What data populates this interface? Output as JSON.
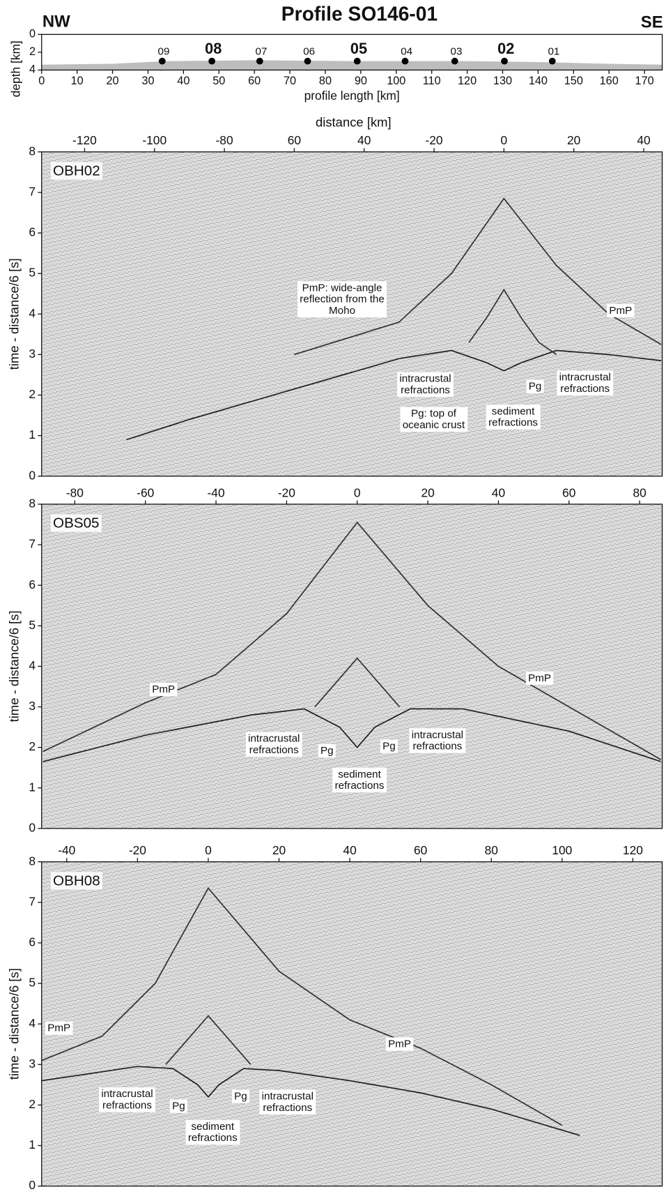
{
  "chart_data": [
    {
      "type": "area",
      "title": "Profile SO146-01",
      "left_label": "NW",
      "right_label": "SE",
      "xlabel": "profile length [km]",
      "ylabel": "depth [km]",
      "xlim": [
        0,
        175
      ],
      "xticks": [
        0,
        10,
        20,
        30,
        40,
        50,
        60,
        70,
        80,
        90,
        100,
        110,
        120,
        130,
        140,
        150,
        160,
        170
      ],
      "ylim": [
        4,
        0
      ],
      "yticks": [
        0,
        2,
        4
      ],
      "color": "#bdbdbd",
      "x": [
        0,
        20,
        35,
        60,
        90,
        120,
        140,
        160,
        175
      ],
      "values": [
        3.4,
        3.3,
        3.0,
        2.9,
        3.0,
        3.0,
        3.1,
        3.3,
        3.4
      ],
      "stations": {
        "labels": [
          "09",
          "08",
          "07",
          "06",
          "05",
          "04",
          "03",
          "02",
          "01"
        ],
        "x": [
          34,
          48,
          61.5,
          75,
          89,
          102.5,
          116.5,
          130.5,
          144
        ],
        "values": [
          3,
          3,
          3,
          3,
          3,
          3,
          3,
          3,
          3
        ],
        "bold": [
          false,
          true,
          false,
          false,
          true,
          false,
          false,
          true,
          false
        ]
      }
    },
    {
      "type": "line",
      "panel_label": "OBH02",
      "xlabel": "distance [km]",
      "ylabel": "time - distance/6 [s]",
      "xlim": [
        -132.3,
        45.3
      ],
      "xticks": [
        -120,
        -100,
        -80,
        {
          "value": -60,
          "label": "60"
        },
        {
          "value": -40,
          "label": "40"
        },
        -20,
        0,
        20,
        40
      ],
      "ylim": [
        0,
        8
      ],
      "yticks": [
        0,
        1,
        2,
        3,
        4,
        5,
        6,
        7,
        8
      ],
      "series": [
        {
          "color": "#333333",
          "x": [
            -60,
            -45,
            -30,
            -15,
            0,
            15,
            30,
            45
          ],
          "values": [
            3.0,
            3.4,
            3.8,
            5.0,
            6.85,
            5.2,
            4.0,
            3.25
          ]
        },
        {
          "color": "#222222",
          "x": [
            -108,
            -90,
            -70,
            -50,
            -30,
            -15,
            -5,
            0,
            5,
            15,
            30,
            45
          ],
          "values": [
            0.9,
            1.4,
            1.9,
            2.4,
            2.9,
            3.1,
            2.8,
            2.6,
            2.8,
            3.1,
            3.0,
            2.85
          ]
        },
        {
          "color": "#333333",
          "x": [
            -10,
            -5,
            0,
            5,
            10,
            15
          ],
          "values": [
            3.3,
            3.9,
            4.6,
            3.9,
            3.3,
            3.0
          ]
        }
      ],
      "annotations": [
        {
          "lines": [
            "PmP: wide-angle",
            "reflection from the",
            "Moho"
          ]
        },
        {
          "lines": [
            "PmP"
          ]
        },
        {
          "lines": [
            "intracrustal",
            "refractions"
          ]
        },
        {
          "lines": [
            "Pg"
          ]
        },
        {
          "lines": [
            "intracrustal",
            "refractions"
          ]
        },
        {
          "lines": [
            "Pg: top of",
            "oceanic crust"
          ]
        },
        {
          "lines": [
            "sediment",
            "refractions"
          ]
        }
      ]
    },
    {
      "type": "line",
      "panel_label": "OBS05",
      "ylabel": "time - distance/6 [s]",
      "xlim": [
        -89.4,
        86.4
      ],
      "xticks": [
        -80,
        -60,
        -40,
        -20,
        0,
        20,
        40,
        60,
        80
      ],
      "ylim": [
        0,
        8
      ],
      "yticks": [
        0,
        1,
        2,
        3,
        4,
        5,
        6,
        7,
        8
      ],
      "series": [
        {
          "color": "#333333",
          "x": [
            -89,
            -60,
            -40,
            -20,
            0,
            20,
            40,
            60,
            86
          ],
          "values": [
            1.9,
            3.1,
            3.8,
            5.3,
            7.55,
            5.5,
            4.0,
            3.0,
            1.7
          ]
        },
        {
          "color": "#222222",
          "x": [
            -89,
            -60,
            -30,
            -15,
            -5,
            0,
            5,
            15,
            30,
            60,
            86
          ],
          "values": [
            1.65,
            2.3,
            2.8,
            2.95,
            2.5,
            2.0,
            2.5,
            2.95,
            2.95,
            2.4,
            1.65
          ]
        },
        {
          "color": "#333333",
          "x": [
            -12,
            -6,
            0,
            6,
            12
          ],
          "values": [
            3.0,
            3.6,
            4.2,
            3.6,
            3.0
          ]
        }
      ],
      "annotations": [
        {
          "lines": [
            "PmP"
          ]
        },
        {
          "lines": [
            "PmP"
          ]
        },
        {
          "lines": [
            "intracrustal",
            "refractions"
          ]
        },
        {
          "lines": [
            "Pg"
          ]
        },
        {
          "lines": [
            "Pg"
          ]
        },
        {
          "lines": [
            "intracrustal",
            "refractions"
          ]
        },
        {
          "lines": [
            "sediment",
            "refractions"
          ]
        }
      ]
    },
    {
      "type": "line",
      "panel_label": "OBH08",
      "ylabel": "time - distance/6 [s]",
      "xlim": [
        -47.1,
        128.3
      ],
      "xticks": [
        -40,
        -20,
        0,
        20,
        40,
        60,
        80,
        100,
        120
      ],
      "ylim": [
        0,
        8
      ],
      "yticks": [
        0,
        1,
        2,
        3,
        4,
        5,
        6,
        7,
        8
      ],
      "series": [
        {
          "color": "#333333",
          "x": [
            -47,
            -30,
            -15,
            0,
            20,
            40,
            60,
            80,
            100
          ],
          "values": [
            3.1,
            3.7,
            5.0,
            7.35,
            5.3,
            4.1,
            3.4,
            2.5,
            1.5
          ]
        },
        {
          "color": "#222222",
          "x": [
            -47,
            -20,
            -10,
            -3,
            0,
            3,
            10,
            20,
            40,
            60,
            80,
            105
          ],
          "values": [
            2.6,
            2.95,
            2.9,
            2.5,
            2.2,
            2.5,
            2.9,
            2.85,
            2.6,
            2.3,
            1.9,
            1.25
          ]
        },
        {
          "color": "#333333",
          "x": [
            -12,
            -6,
            0,
            6,
            12
          ],
          "values": [
            3.0,
            3.6,
            4.2,
            3.6,
            3.0
          ]
        }
      ],
      "annotations": [
        {
          "lines": [
            "PmP"
          ]
        },
        {
          "lines": [
            "PmP"
          ]
        },
        {
          "lines": [
            "intracrustal",
            "refractions"
          ]
        },
        {
          "lines": [
            "Pg"
          ]
        },
        {
          "lines": [
            "Pg"
          ]
        },
        {
          "lines": [
            "intracrustal",
            "refractions"
          ]
        },
        {
          "lines": [
            "sediment",
            "refractions"
          ]
        }
      ]
    }
  ]
}
